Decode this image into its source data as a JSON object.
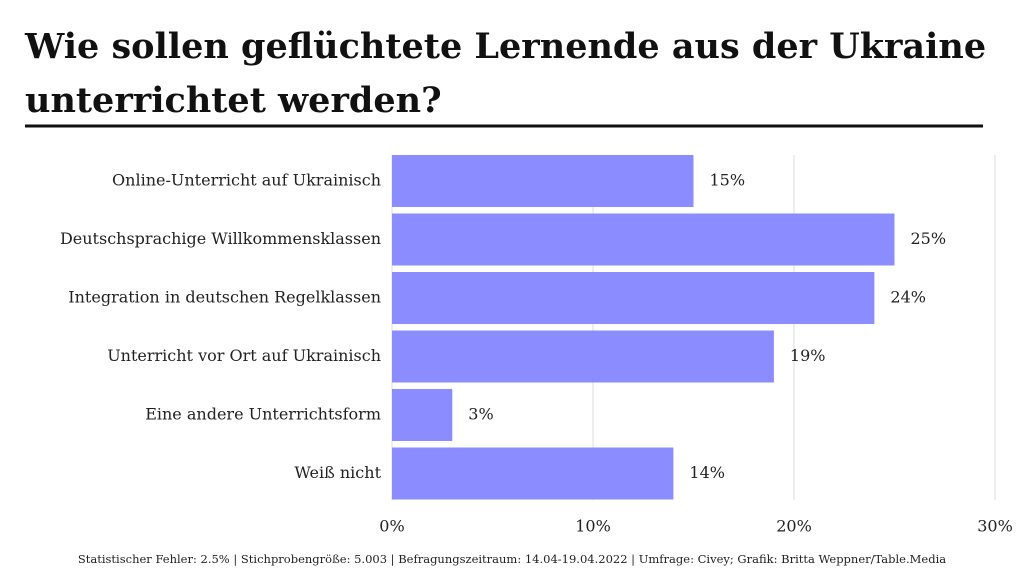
{
  "chart_data": {
    "type": "bar",
    "orientation": "horizontal",
    "title": "Wie sollen geflüchtete Lernende aus der Ukraine unterrichtet werden?",
    "categories": [
      "Online-Unterricht auf Ukrainisch",
      "Deutschsprachige Willkommensklassen",
      "Integration in deutschen Regelklassen",
      "Unterricht vor Ort auf Ukrainisch",
      "Eine andere Unterrichtsform",
      "Weiß nicht"
    ],
    "values": [
      15,
      25,
      24,
      19,
      3,
      14
    ],
    "value_labels": [
      "15%",
      "25%",
      "24%",
      "19%",
      "3%",
      "14%"
    ],
    "color": "#8a8cff",
    "xlim": [
      0,
      30
    ],
    "xticks": [
      {
        "value": 0,
        "label": "0%"
      },
      {
        "value": 10,
        "label": "10%"
      },
      {
        "value": 20,
        "label": "20%"
      },
      {
        "value": 30,
        "label": "30%"
      }
    ],
    "grid": true,
    "note": "Statistischer Fehler: 2.5% | Stichprobengröße: 5.003 | Befragungszeitraum: 14.04-19.04.2022 | Umfrage: Civey; Grafik: Britta Weppner/Table.Media"
  }
}
